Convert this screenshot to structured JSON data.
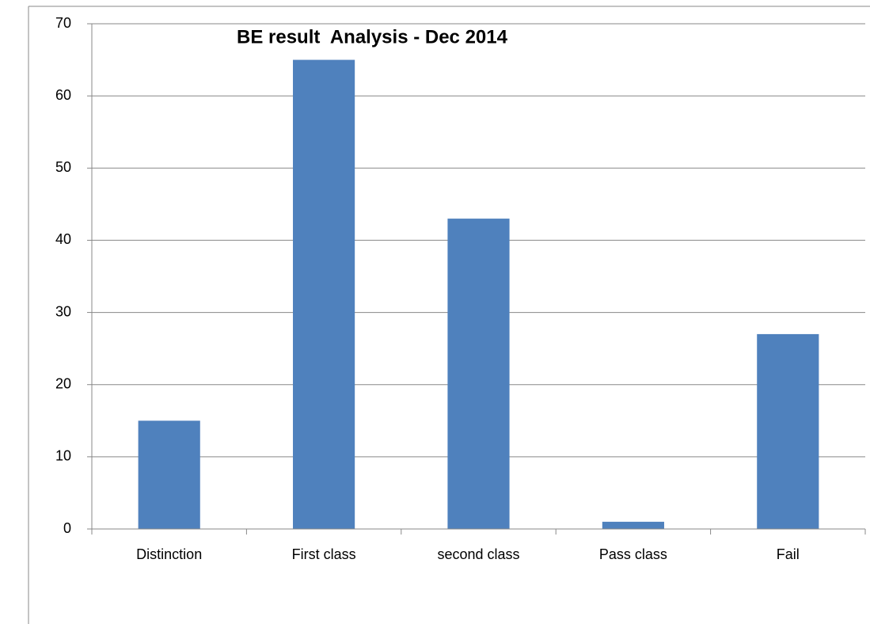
{
  "chart_data": {
    "type": "bar",
    "title": "BE result  Analysis - Dec 2014",
    "categories": [
      "Distinction",
      "First class",
      "second class",
      "Pass class",
      "Fail"
    ],
    "values": [
      15,
      65,
      43,
      1,
      27
    ],
    "color": "#4f81bd",
    "ylim": [
      0,
      70
    ],
    "yticks": [
      0,
      10,
      20,
      30,
      40,
      50,
      60,
      70
    ],
    "grid": true
  }
}
